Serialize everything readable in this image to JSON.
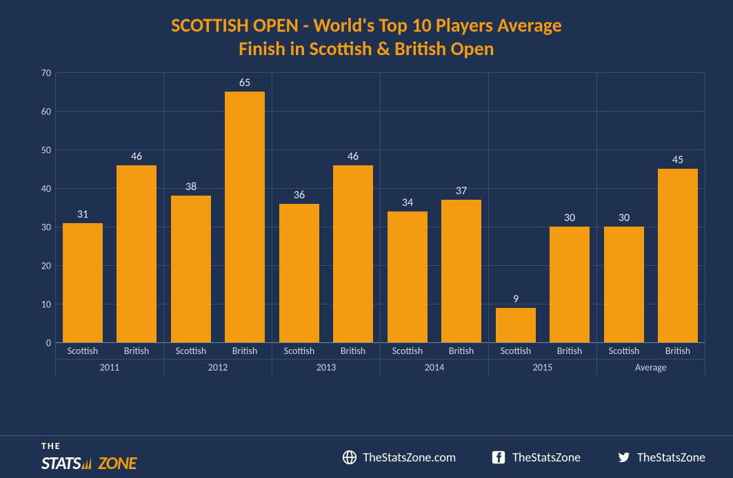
{
  "title_line1": "SCOTTISH OPEN - World's Top 10 Players Average",
  "title_line2": "Finish in Scottish & British Open",
  "title_color": "#f39c12",
  "title_fontsize": 28,
  "background_color": "#1f3151",
  "chart": {
    "type": "bar",
    "bar_color": "#f39c12",
    "gridline_color": "#3a4d6e",
    "axis_text_color": "#cdd6e2",
    "value_text_color": "#e6e9ef",
    "label_fontsize": 14,
    "value_fontsize": 16,
    "ylim": [
      0,
      70
    ],
    "ytick_step": 10,
    "yticks": [
      0,
      10,
      20,
      30,
      40,
      50,
      60,
      70
    ],
    "sub_labels": [
      "Scottish",
      "British"
    ],
    "groups": [
      {
        "label": "2011",
        "values": [
          31,
          46
        ]
      },
      {
        "label": "2012",
        "values": [
          38,
          65
        ]
      },
      {
        "label": "2013",
        "values": [
          36,
          46
        ]
      },
      {
        "label": "2014",
        "values": [
          34,
          37
        ]
      },
      {
        "label": "2015",
        "values": [
          9,
          30
        ]
      },
      {
        "label": "Average",
        "values": [
          30,
          45
        ]
      }
    ]
  },
  "footer": {
    "logo_the": "THE",
    "logo_stats": "STATS",
    "logo_zone": "ZONE",
    "links": [
      {
        "icon": "globe-icon",
        "label": "TheStatsZone.com"
      },
      {
        "icon": "facebook-icon",
        "label": "TheStatsZone"
      },
      {
        "icon": "twitter-icon",
        "label": "TheStatsZone"
      }
    ]
  }
}
